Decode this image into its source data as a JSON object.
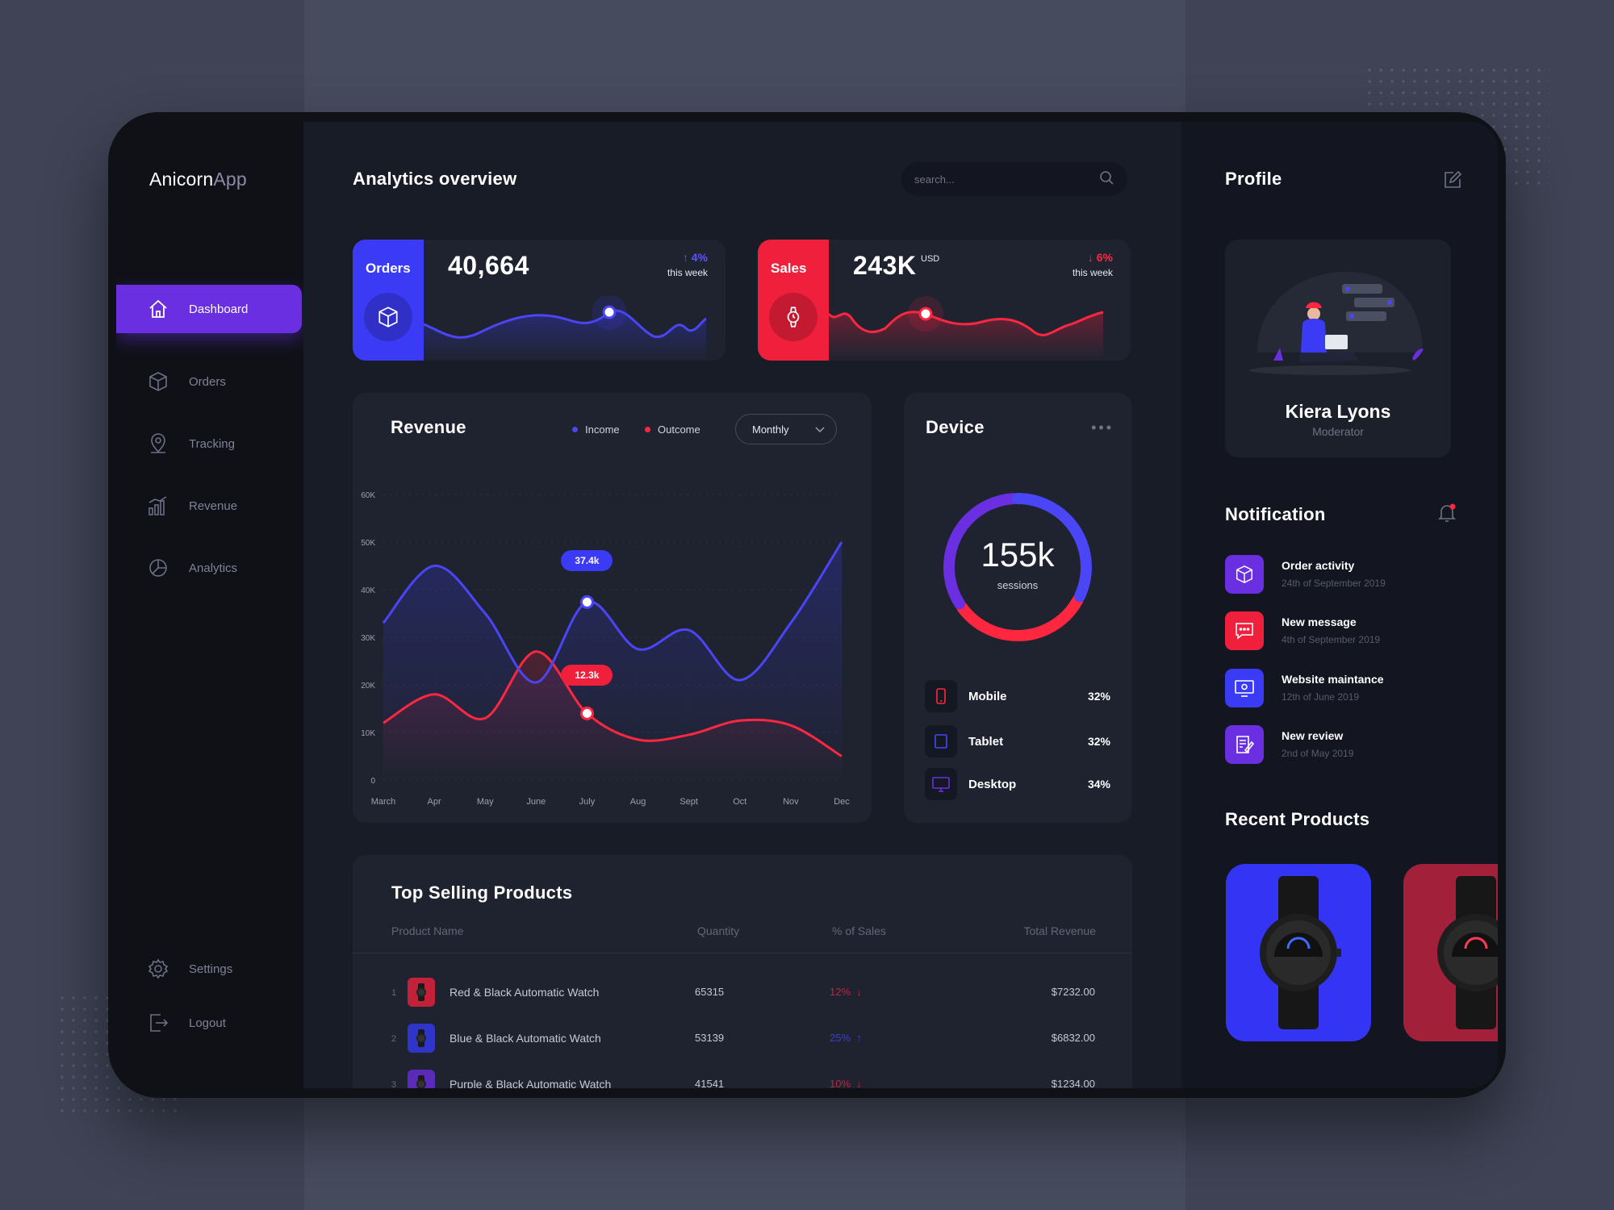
{
  "app": {
    "brand_bold": "Anicorn",
    "brand_light": "App"
  },
  "sidebar": {
    "items": [
      {
        "label": "Dashboard",
        "icon": "home-icon"
      },
      {
        "label": "Orders",
        "icon": "box-icon"
      },
      {
        "label": "Tracking",
        "icon": "location-pin-icon"
      },
      {
        "label": "Revenue",
        "icon": "bar-chart-icon"
      },
      {
        "label": "Analytics",
        "icon": "pie-chart-icon"
      }
    ],
    "settings": "Settings",
    "logout": "Logout"
  },
  "header": {
    "title": "Analytics overview",
    "search_placeholder": "search..."
  },
  "stats": {
    "orders": {
      "label": "Orders",
      "value": "40,664",
      "delta": "↑ 4%",
      "period": "this week",
      "color": "#3b3bf5"
    },
    "sales": {
      "label": "Sales",
      "value": "243K",
      "unit": "USD",
      "delta": "↓ 6%",
      "period": "this week",
      "color": "#f0203c"
    }
  },
  "revenue": {
    "title": "Revenue",
    "legend_income": "Income",
    "legend_outcome": "Outcome",
    "period": "Monthly",
    "tooltip_income": "37.4k",
    "tooltip_outcome": "12.3k"
  },
  "chart_data": {
    "type": "line",
    "title": "Revenue",
    "categories": [
      "March",
      "Apr",
      "May",
      "June",
      "July",
      "Aug",
      "Sept",
      "Oct",
      "Nov",
      "Dec"
    ],
    "y_ticks": [
      "0",
      "10K",
      "20K",
      "30K",
      "40K",
      "50K",
      "60K"
    ],
    "ylim": [
      0,
      60000
    ],
    "grid": true,
    "legend": "top-right",
    "series": [
      {
        "name": "Income",
        "color": "#4a45f5",
        "values": [
          33000,
          45000,
          35000,
          20500,
          37400,
          27500,
          31500,
          21000,
          33000,
          50000
        ]
      },
      {
        "name": "Outcome",
        "color": "#ff2740",
        "values": [
          12000,
          18000,
          13000,
          27000,
          14000,
          8500,
          9500,
          12500,
          11500,
          5000
        ]
      }
    ]
  },
  "device": {
    "title": "Device",
    "total": "155k",
    "total_label": "sessions",
    "rows": [
      {
        "name": "Mobile",
        "pct": "32%",
        "color": "#ff2740"
      },
      {
        "name": "Tablet",
        "pct": "32%",
        "color": "#4a45f5"
      },
      {
        "name": "Desktop",
        "pct": "34%",
        "color": "#6a2fe0"
      }
    ]
  },
  "top_products": {
    "title": "Top Selling Products",
    "columns": [
      "Product Name",
      "Quantity",
      "% of Sales",
      "Total Revenue"
    ],
    "rows": [
      {
        "no": "1",
        "name": "Red & Black Automatic Watch",
        "qty": "65315",
        "pct": "12%",
        "arrow": "↓",
        "revenue": "$7232.00",
        "color": "#c3213a",
        "trend": "#b8283d"
      },
      {
        "no": "2",
        "name": "Blue & Black Automatic Watch",
        "qty": "53139",
        "pct": "25%",
        "arrow": "↑",
        "revenue": "$6832.00",
        "color": "#2f35c9",
        "trend": "#3b40c8"
      },
      {
        "no": "3",
        "name": "Purple & Black Automatic Watch",
        "qty": "41541",
        "pct": "10%",
        "arrow": "↓",
        "revenue": "$1234.00",
        "color": "#5a2bb8",
        "trend": "#b8283d"
      }
    ]
  },
  "profile": {
    "title": "Profile",
    "name": "Kiera Lyons",
    "role": "Moderator"
  },
  "notifications": {
    "title": "Notification",
    "items": [
      {
        "title": "Order activity",
        "date": "24th of September 2019",
        "color": "#6a2fe0",
        "icon": "box-icon"
      },
      {
        "title": "New message",
        "date": "4th of September 2019",
        "color": "#f0203c",
        "icon": "chat-icon"
      },
      {
        "title": "Website maintance",
        "date": "12th of June 2019",
        "color": "#3b3bf5",
        "icon": "monitor-icon"
      },
      {
        "title": "New review",
        "date": "2nd of May 2019",
        "color": "#6a2fe0",
        "icon": "review-icon"
      }
    ]
  },
  "recent_products": {
    "title": "Recent Products",
    "colors": [
      "#3434f5",
      "#a3203a"
    ]
  }
}
